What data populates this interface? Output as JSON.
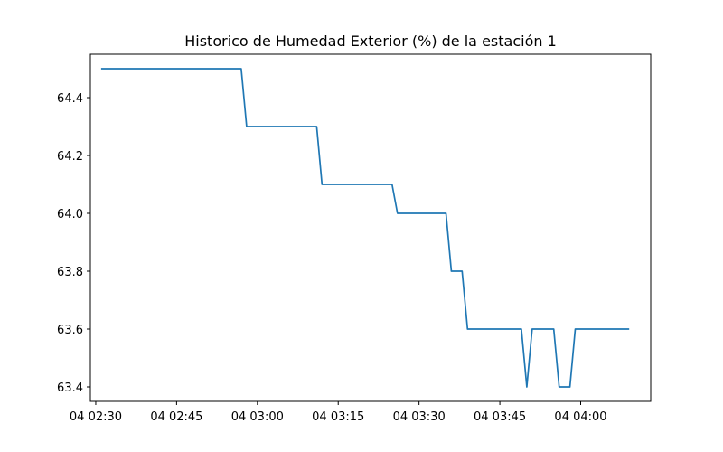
{
  "chart_data": {
    "type": "line",
    "title": "Historico de Humedad Exterior (%) de la estación 1",
    "xlabel": "",
    "ylabel": "",
    "x_ticks": [
      "04 02:30",
      "04 02:45",
      "04 03:00",
      "04 03:15",
      "04 03:30",
      "04 03:45",
      "04 04:00"
    ],
    "y_ticks": [
      "63.4",
      "63.6",
      "63.8",
      "64.0",
      "64.2",
      "64.4"
    ],
    "xlim": [
      "04 02:29",
      "04 04:13"
    ],
    "ylim": [
      63.35,
      64.55
    ],
    "grid": false,
    "legend": "none",
    "colors": {
      "series": "#1f77b4",
      "axes": "#000000"
    },
    "series": [
      {
        "x": [
          "04 02:31",
          "04 02:57",
          "04 02:58",
          "04 03:11",
          "04 03:12",
          "04 03:25",
          "04 03:26",
          "04 03:35",
          "04 03:36",
          "04 03:38",
          "04 03:39",
          "04 03:49",
          "04 03:50",
          "04 03:51",
          "04 03:55",
          "04 03:56",
          "04 03:58",
          "04 03:59",
          "04 04:09"
        ],
        "y": [
          64.5,
          64.5,
          64.3,
          64.3,
          64.1,
          64.1,
          64.0,
          64.0,
          63.8,
          63.8,
          63.6,
          63.6,
          63.4,
          63.6,
          63.6,
          63.4,
          63.4,
          63.6,
          63.6
        ]
      }
    ]
  }
}
